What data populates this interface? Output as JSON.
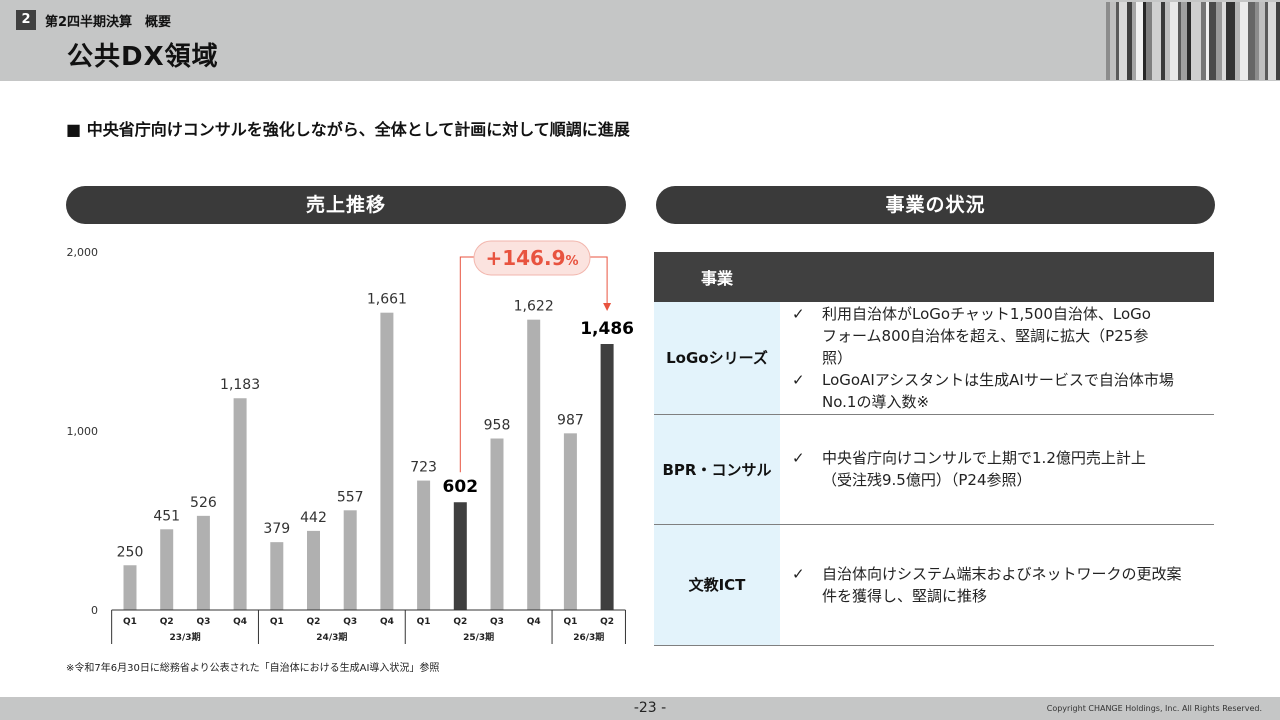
{
  "header": {
    "section_number": "2",
    "section_title": "第2四半期決算　概要",
    "page_title": "公共DX領域"
  },
  "lead": "■ 中央省庁向けコンサルを強化しながら、全体として計画に対して順調に進展",
  "sales_section": {
    "title": "売上推移"
  },
  "business_section": {
    "title": "事業の状況"
  },
  "chart_data": {
    "type": "bar",
    "categories": [
      "Q1",
      "Q2",
      "Q3",
      "Q4",
      "Q1",
      "Q2",
      "Q3",
      "Q4",
      "Q1",
      "Q2",
      "Q3",
      "Q4",
      "Q1",
      "Q2"
    ],
    "values": [
      250,
      451,
      526,
      1183,
      379,
      442,
      557,
      1661,
      723,
      602,
      958,
      1622,
      987,
      1486
    ],
    "value_labels": [
      "250",
      "451",
      "526",
      "1,183",
      "379",
      "442",
      "557",
      "1,661",
      "723",
      "602",
      "958",
      "1,622",
      "987",
      "1,486"
    ],
    "highlight_indices": [
      9,
      13
    ],
    "groups": [
      {
        "label": "23/3期",
        "count": 4
      },
      {
        "label": "24/3期",
        "count": 4
      },
      {
        "label": "25/3期",
        "count": 4
      },
      {
        "label": "26/3期",
        "count": 2
      }
    ],
    "yticks": [
      0,
      1000,
      2000
    ],
    "ytick_labels": [
      "0",
      "1,000",
      "2,000"
    ],
    "ylim": [
      0,
      2000
    ],
    "growth_annotation": {
      "value": "+146.9",
      "unit": "%",
      "from_index": 9,
      "to_index": 13
    },
    "colors": {
      "bar": "#b0b0b0",
      "highlight": "#3f3f3f",
      "accent": "#e8533f",
      "badge_bg": "#fbe3df"
    }
  },
  "table": {
    "header": "事業",
    "rows": [
      {
        "category": "LoGoシリーズ",
        "bullets": [
          {
            "lines": [
              "利用自治体がLoGoチャット1,500自治体、LoGo",
              "フォーム800自治体を超え、堅調に拡大（P25参",
              "照）"
            ]
          },
          {
            "lines": [
              "LoGoAIアシスタントは生成AIサービスで自治体市場",
              "No.1の導入数※"
            ]
          }
        ]
      },
      {
        "category": "BPR・コンサル",
        "bullets": [
          {
            "lines": [
              "中央省庁向けコンサルで上期で1.2億円売上計上",
              "（受注残9.5億円）（P24参照）"
            ]
          }
        ]
      },
      {
        "category": "文教ICT",
        "bullets": [
          {
            "lines": [
              "自治体向けシステム端末およびネットワークの更改案",
              "件を獲得し、堅調に推移"
            ]
          }
        ]
      }
    ],
    "check_mark": "✓",
    "colors": {
      "header_bg": "#404040",
      "category_bg": "#e3f3fb"
    }
  },
  "footnote": "※令和7年6月30日に総務省より公表された「自治体における生成AI導入状況」参照",
  "footer": {
    "page": "-23 -",
    "copyright": "Copyright CHANGE Holdings, Inc. All Rights Reserved."
  }
}
